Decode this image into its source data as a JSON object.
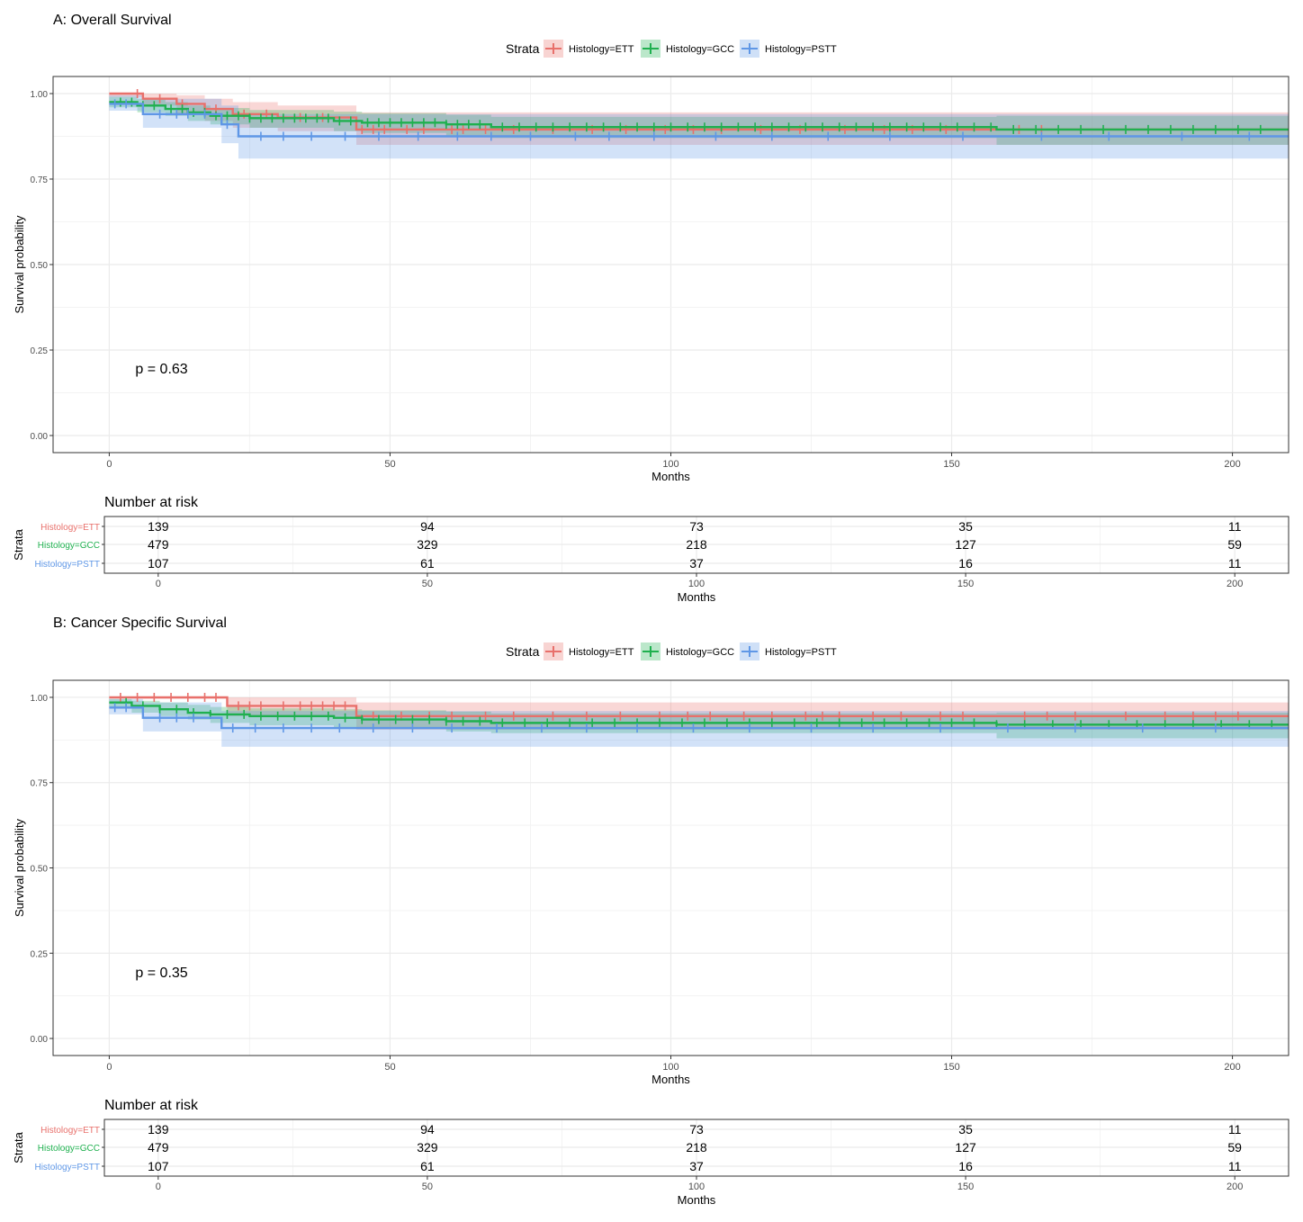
{
  "colors": {
    "ETT": "#e8706b",
    "GCC": "#1fb04f",
    "PSTT": "#5f97e6",
    "grid": "#ebebeb",
    "frame": "#333333"
  },
  "legend": {
    "title": "Strata",
    "items": [
      "Histology=ETT",
      "Histology=GCC",
      "Histology=PSTT"
    ]
  },
  "chart_data": [
    {
      "type": "line",
      "panel": "A",
      "title": "A: Overall Survival",
      "xlabel": "Months",
      "ylabel": "Survival probability",
      "xlim": [
        -10,
        210
      ],
      "ylim": [
        -0.05,
        1.05
      ],
      "x_ticks": [
        0,
        50,
        100,
        150,
        200
      ],
      "y_ticks": [
        0.0,
        0.25,
        0.5,
        0.75,
        1.0
      ],
      "y_tick_labels": [
        "0.00",
        "0.25",
        "0.50",
        "0.75",
        "1.00"
      ],
      "grid": true,
      "legend_position": "top",
      "annotation": "p = 0.63",
      "series": [
        {
          "name": "Histology=ETT",
          "key": "ETT",
          "steps": [
            [
              0,
              1.0
            ],
            [
              6,
              0.985
            ],
            [
              12,
              0.97
            ],
            [
              17,
              0.955
            ],
            [
              22,
              0.94
            ],
            [
              30,
              0.93
            ],
            [
              44,
              0.895
            ],
            [
              210,
              0.895
            ]
          ],
          "lower": [
            [
              0,
              0.99
            ],
            [
              6,
              0.965
            ],
            [
              12,
              0.94
            ],
            [
              17,
              0.92
            ],
            [
              22,
              0.9
            ],
            [
              30,
              0.89
            ],
            [
              44,
              0.85
            ],
            [
              210,
              0.85
            ]
          ],
          "upper": [
            [
              0,
              1.0
            ],
            [
              6,
              1.0
            ],
            [
              12,
              0.995
            ],
            [
              17,
              0.985
            ],
            [
              22,
              0.975
            ],
            [
              30,
              0.965
            ],
            [
              44,
              0.945
            ],
            [
              210,
              0.945
            ]
          ],
          "censor": [
            5,
            9,
            13,
            19,
            24,
            28,
            34,
            38,
            45,
            47,
            49,
            53,
            56,
            61,
            63,
            67,
            72,
            79,
            86,
            92,
            99,
            104,
            109,
            116,
            123,
            131,
            138,
            143,
            149,
            162,
            166
          ]
        },
        {
          "name": "Histology=GCC",
          "key": "GCC",
          "steps": [
            [
              0,
              0.975
            ],
            [
              5,
              0.965
            ],
            [
              10,
              0.955
            ],
            [
              14,
              0.945
            ],
            [
              18,
              0.935
            ],
            [
              25,
              0.928
            ],
            [
              40,
              0.92
            ],
            [
              45,
              0.915
            ],
            [
              60,
              0.91
            ],
            [
              68,
              0.902
            ],
            [
              158,
              0.895
            ],
            [
              210,
              0.895
            ]
          ],
          "lower": [
            [
              0,
              0.96
            ],
            [
              5,
              0.945
            ],
            [
              10,
              0.935
            ],
            [
              14,
              0.92
            ],
            [
              18,
              0.91
            ],
            [
              25,
              0.9
            ],
            [
              40,
              0.89
            ],
            [
              45,
              0.885
            ],
            [
              60,
              0.878
            ],
            [
              68,
              0.87
            ],
            [
              158,
              0.85
            ],
            [
              210,
              0.85
            ]
          ],
          "upper": [
            [
              0,
              0.99
            ],
            [
              5,
              0.985
            ],
            [
              10,
              0.975
            ],
            [
              14,
              0.965
            ],
            [
              18,
              0.958
            ],
            [
              25,
              0.952
            ],
            [
              40,
              0.947
            ],
            [
              45,
              0.943
            ],
            [
              60,
              0.938
            ],
            [
              68,
              0.932
            ],
            [
              158,
              0.935
            ],
            [
              210,
              0.935
            ]
          ],
          "censor": [
            2,
            4,
            6,
            8,
            11,
            13,
            15,
            17,
            19,
            21,
            23,
            25,
            27,
            29,
            31,
            33,
            35,
            37,
            39,
            41,
            43,
            46,
            48,
            50,
            52,
            54,
            56,
            58,
            60,
            62,
            64,
            66,
            70,
            73,
            76,
            79,
            82,
            85,
            88,
            91,
            94,
            97,
            100,
            103,
            106,
            109,
            112,
            115,
            118,
            121,
            124,
            127,
            130,
            133,
            136,
            139,
            142,
            145,
            148,
            151,
            154,
            157,
            161,
            165,
            169,
            173,
            177,
            181,
            185,
            189,
            193,
            197,
            201,
            205
          ]
        },
        {
          "name": "Histology=PSTT",
          "key": "PSTT",
          "steps": [
            [
              0,
              0.97
            ],
            [
              6,
              0.94
            ],
            [
              20,
              0.91
            ],
            [
              23,
              0.875
            ],
            [
              210,
              0.875
            ]
          ],
          "lower": [
            [
              0,
              0.95
            ],
            [
              6,
              0.9
            ],
            [
              20,
              0.855
            ],
            [
              23,
              0.81
            ],
            [
              210,
              0.81
            ]
          ],
          "upper": [
            [
              0,
              0.995
            ],
            [
              6,
              0.985
            ],
            [
              20,
              0.965
            ],
            [
              23,
              0.94
            ],
            [
              210,
              0.94
            ]
          ],
          "censor": [
            1,
            3,
            9,
            12,
            14,
            17,
            21,
            27,
            31,
            36,
            42,
            48,
            55,
            62,
            68,
            75,
            83,
            89,
            97,
            108,
            118,
            128,
            139,
            152,
            166,
            178,
            191,
            203
          ]
        }
      ]
    },
    {
      "type": "table",
      "panel": "A",
      "title": "Number at risk",
      "ylabel": "Strata",
      "xlabel": "Months",
      "xlim": [
        -10,
        210
      ],
      "x_ticks": [
        0,
        50,
        100,
        150,
        200
      ],
      "rows": [
        {
          "name": "Histology=ETT",
          "key": "ETT",
          "values": [
            "139",
            "94",
            "73",
            "35",
            "11"
          ]
        },
        {
          "name": "Histology=GCC",
          "key": "GCC",
          "values": [
            "479",
            "329",
            "218",
            "127",
            "59"
          ]
        },
        {
          "name": "Histology=PSTT",
          "key": "PSTT",
          "values": [
            "107",
            "61",
            "37",
            "16",
            "11"
          ]
        }
      ]
    },
    {
      "type": "line",
      "panel": "B",
      "title": "B: Cancer Specific Survival",
      "xlabel": "Months",
      "ylabel": "Survival probability",
      "xlim": [
        -10,
        210
      ],
      "ylim": [
        -0.05,
        1.05
      ],
      "x_ticks": [
        0,
        50,
        100,
        150,
        200
      ],
      "y_ticks": [
        0.0,
        0.25,
        0.5,
        0.75,
        1.0
      ],
      "y_tick_labels": [
        "0.00",
        "0.25",
        "0.50",
        "0.75",
        "1.00"
      ],
      "grid": true,
      "legend_position": "top",
      "annotation": "p = 0.35",
      "series": [
        {
          "name": "Histology=ETT",
          "key": "ETT",
          "steps": [
            [
              0,
              1.0
            ],
            [
              21,
              0.975
            ],
            [
              44,
              0.945
            ],
            [
              210,
              0.945
            ]
          ],
          "lower": [
            [
              0,
              0.995
            ],
            [
              21,
              0.945
            ],
            [
              44,
              0.905
            ],
            [
              210,
              0.905
            ]
          ],
          "upper": [
            [
              0,
              1.0
            ],
            [
              21,
              1.0
            ],
            [
              44,
              0.985
            ],
            [
              210,
              0.985
            ]
          ],
          "censor": [
            2,
            5,
            8,
            11,
            14,
            17,
            19,
            23,
            25,
            27,
            31,
            34,
            36,
            38,
            40,
            42,
            47,
            52,
            57,
            61,
            67,
            72,
            79,
            85,
            91,
            98,
            103,
            107,
            113,
            118,
            124,
            127,
            130,
            136,
            141,
            148,
            152,
            163,
            167,
            172,
            181,
            188,
            193,
            197,
            201
          ]
        },
        {
          "name": "Histology=GCC",
          "key": "GCC",
          "steps": [
            [
              0,
              0.985
            ],
            [
              4,
              0.975
            ],
            [
              9,
              0.965
            ],
            [
              14,
              0.955
            ],
            [
              18,
              0.95
            ],
            [
              25,
              0.945
            ],
            [
              40,
              0.94
            ],
            [
              45,
              0.935
            ],
            [
              60,
              0.93
            ],
            [
              68,
              0.925
            ],
            [
              158,
              0.92
            ],
            [
              210,
              0.92
            ]
          ],
          "lower": [
            [
              0,
              0.97
            ],
            [
              4,
              0.955
            ],
            [
              9,
              0.945
            ],
            [
              14,
              0.935
            ],
            [
              18,
              0.925
            ],
            [
              25,
              0.918
            ],
            [
              40,
              0.912
            ],
            [
              45,
              0.908
            ],
            [
              60,
              0.9
            ],
            [
              68,
              0.895
            ],
            [
              158,
              0.88
            ],
            [
              210,
              0.88
            ]
          ],
          "upper": [
            [
              0,
              0.995
            ],
            [
              4,
              0.99
            ],
            [
              9,
              0.985
            ],
            [
              14,
              0.978
            ],
            [
              18,
              0.972
            ],
            [
              25,
              0.968
            ],
            [
              40,
              0.965
            ],
            [
              45,
              0.962
            ],
            [
              60,
              0.958
            ],
            [
              68,
              0.953
            ],
            [
              158,
              0.955
            ],
            [
              210,
              0.955
            ]
          ],
          "censor": [
            3,
            6,
            9,
            12,
            15,
            18,
            21,
            24,
            27,
            30,
            33,
            36,
            39,
            42,
            45,
            48,
            51,
            54,
            57,
            60,
            63,
            66,
            70,
            74,
            78,
            82,
            86,
            90,
            94,
            98,
            102,
            106,
            110,
            114,
            118,
            122,
            126,
            130,
            134,
            138,
            142,
            146,
            150,
            154,
            158,
            163,
            168,
            173,
            178,
            183,
            188,
            193,
            198,
            203,
            207
          ]
        },
        {
          "name": "Histology=PSTT",
          "key": "PSTT",
          "steps": [
            [
              0,
              0.97
            ],
            [
              6,
              0.94
            ],
            [
              20,
              0.91
            ],
            [
              210,
              0.91
            ]
          ],
          "lower": [
            [
              0,
              0.95
            ],
            [
              6,
              0.9
            ],
            [
              20,
              0.855
            ],
            [
              210,
              0.855
            ]
          ],
          "upper": [
            [
              0,
              0.995
            ],
            [
              6,
              0.985
            ],
            [
              20,
              0.96
            ],
            [
              210,
              0.96
            ]
          ],
          "censor": [
            1,
            3,
            9,
            12,
            15,
            22,
            26,
            31,
            36,
            41,
            47,
            54,
            61,
            69,
            77,
            85,
            94,
            104,
            114,
            125,
            136,
            148,
            160,
            172,
            184,
            197
          ]
        }
      ]
    },
    {
      "type": "table",
      "panel": "B",
      "title": "Number at risk",
      "ylabel": "Strata",
      "xlabel": "Months",
      "xlim": [
        -10,
        210
      ],
      "x_ticks": [
        0,
        50,
        100,
        150,
        200
      ],
      "rows": [
        {
          "name": "Histology=ETT",
          "key": "ETT",
          "values": [
            "139",
            "94",
            "73",
            "35",
            "11"
          ]
        },
        {
          "name": "Histology=GCC",
          "key": "GCC",
          "values": [
            "479",
            "329",
            "218",
            "127",
            "59"
          ]
        },
        {
          "name": "Histology=PSTT",
          "key": "PSTT",
          "values": [
            "107",
            "61",
            "37",
            "16",
            "11"
          ]
        }
      ]
    }
  ]
}
